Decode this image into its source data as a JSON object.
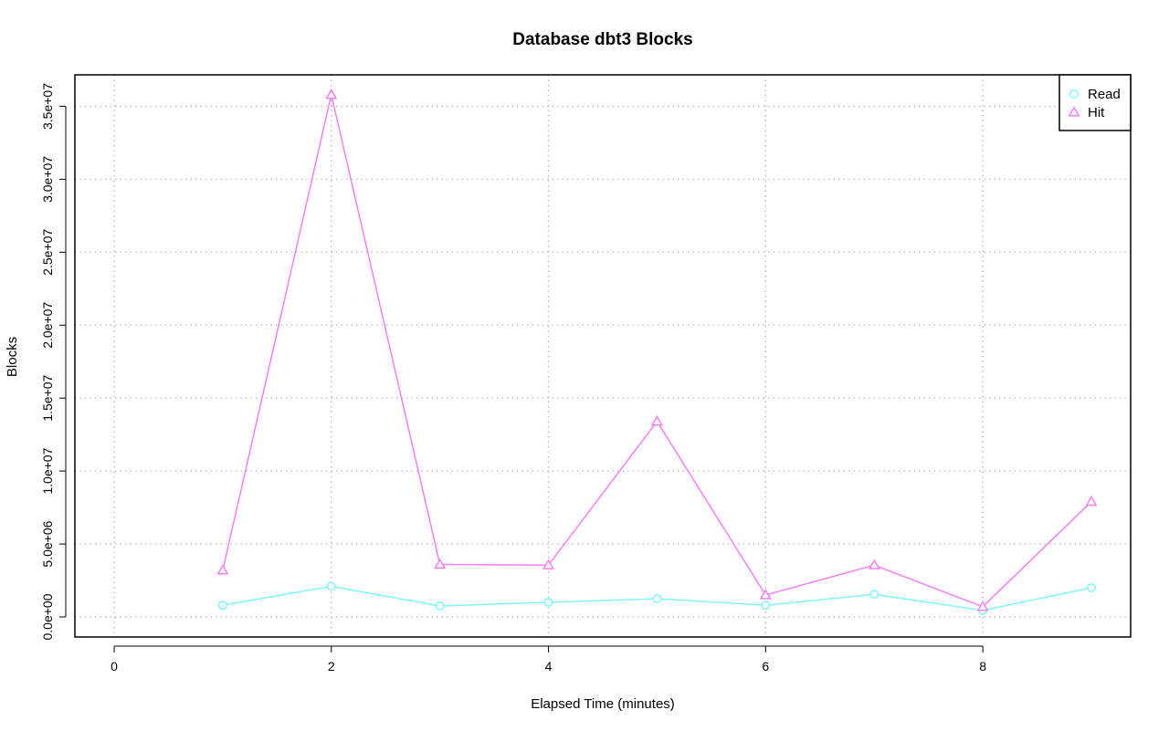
{
  "chart_data": {
    "type": "line",
    "title": "Database dbt3 Blocks",
    "xlabel": "Elapsed Time (minutes)",
    "ylabel": "Blocks",
    "xlim": [
      0,
      9
    ],
    "ylim": [
      0,
      35000000
    ],
    "x_ticks": [
      0,
      2,
      4,
      6,
      8
    ],
    "y_ticks": [
      0,
      5000000,
      10000000,
      15000000,
      20000000,
      25000000,
      30000000,
      35000000
    ],
    "y_tick_labels": [
      "0.0e+00",
      "5.0e+06",
      "1.0e+07",
      "1.5e+07",
      "2.0e+07",
      "2.5e+07",
      "3.0e+07",
      "3.5e+07"
    ],
    "grid": true,
    "legend_position": "top-right",
    "x": [
      1,
      2,
      3,
      4,
      5,
      6,
      7,
      8,
      9
    ],
    "series": [
      {
        "name": "Read",
        "color": "#7ff8f8",
        "marker": "circle",
        "values": [
          800000,
          2100000,
          750000,
          1000000,
          1250000,
          800000,
          1550000,
          450000,
          2000000
        ]
      },
      {
        "name": "Hit",
        "color": "#f77ff7",
        "marker": "triangle",
        "values": [
          3200000,
          35800000,
          3600000,
          3550000,
          13400000,
          1500000,
          3550000,
          700000,
          7900000
        ]
      }
    ]
  }
}
